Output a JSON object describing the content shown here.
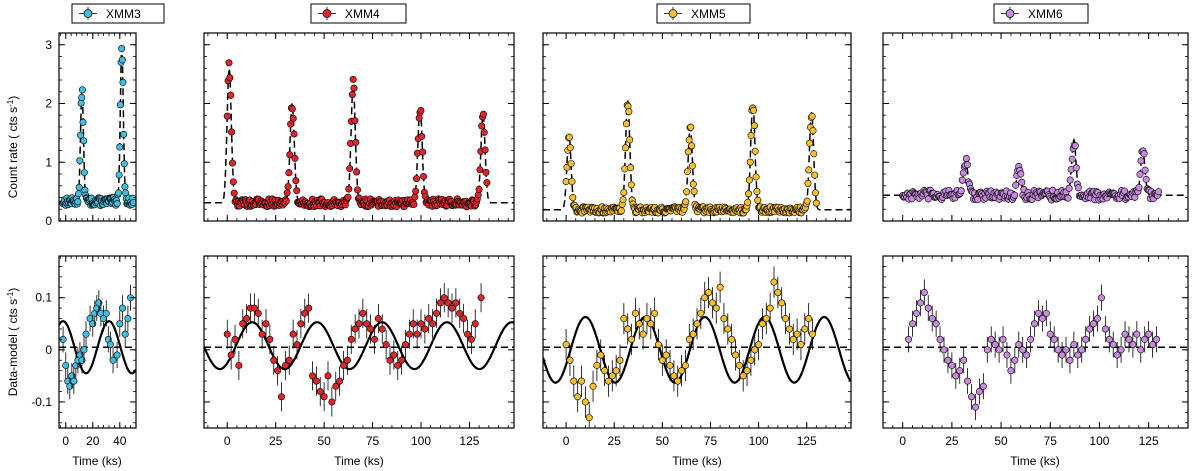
{
  "figure": {
    "ylabel_top_main": "Count rate ( cts s",
    "ylabel_top_sup": "-1",
    "ylabel_top_close": ")",
    "ylabel_bottom_main": "Data-model ( cts s",
    "ylabel_bottom_sup": "-1",
    "ylabel_bottom_close": ")",
    "xlabel": "Time (ks)"
  },
  "chart_data": [
    {
      "type": "scatter",
      "panel": "XMM3",
      "row": "light-curve",
      "legend": "XMM3",
      "marker_color": "#3fc0e0",
      "xlim": [
        -5,
        52
      ],
      "ylim": [
        0,
        3.2
      ],
      "xticks": [
        0,
        20,
        40
      ],
      "yticks": [
        0,
        1,
        2,
        3
      ],
      "yticklabels": [
        "0",
        "1",
        "2",
        "3"
      ],
      "baseline": 0.33,
      "flares": [
        {
          "t": 12,
          "peak": 2.2
        },
        {
          "t": 41.5,
          "peak": 2.95
        }
      ],
      "n_points": 110,
      "t_range": [
        -2,
        50
      ],
      "noise": 0.06
    },
    {
      "type": "scatter",
      "panel": "XMM4",
      "row": "light-curve",
      "legend": "XMM4",
      "marker_color": "#e0262b",
      "xlim": [
        -12,
        148
      ],
      "ylim": [
        0,
        3.2
      ],
      "xticks": [
        0,
        25,
        50,
        75,
        100,
        125
      ],
      "yticks": [
        0,
        1,
        2,
        3
      ],
      "baseline": 0.31,
      "flares": [
        {
          "t": 1,
          "peak": 2.6
        },
        {
          "t": 33.5,
          "peak": 2.0
        },
        {
          "t": 65,
          "peak": 2.3
        },
        {
          "t": 99.5,
          "peak": 1.95
        },
        {
          "t": 132,
          "peak": 1.8
        }
      ],
      "n_points": 300,
      "t_range": [
        0,
        134
      ],
      "noise": 0.06
    },
    {
      "type": "scatter",
      "panel": "XMM5",
      "row": "light-curve",
      "legend": "XMM5",
      "marker_color": "#f5c02a",
      "xlim": [
        -12,
        148
      ],
      "ylim": [
        0,
        3.2
      ],
      "xticks": [
        0,
        25,
        50,
        75,
        100,
        125
      ],
      "yticks": [
        0,
        1,
        2,
        3
      ],
      "baseline": 0.19,
      "flares": [
        {
          "t": 1.5,
          "peak": 1.45
        },
        {
          "t": 32,
          "peak": 2.05
        },
        {
          "t": 64.5,
          "peak": 1.6
        },
        {
          "t": 97,
          "peak": 2.0
        },
        {
          "t": 127.5,
          "peak": 1.85
        }
      ],
      "n_points": 300,
      "t_range": [
        0,
        130
      ],
      "noise": 0.05
    },
    {
      "type": "scatter",
      "panel": "XMM6",
      "row": "light-curve",
      "legend": "XMM6",
      "marker_color": "#c98ae0",
      "xlim": [
        -10,
        145
      ],
      "ylim": [
        0,
        3.2
      ],
      "xticks": [
        0,
        25,
        50,
        75,
        100,
        125
      ],
      "yticks": [
        0,
        1,
        2,
        3
      ],
      "baseline": 0.44,
      "flares": [
        {
          "t": 32,
          "peak": 1.05
        },
        {
          "t": 59,
          "peak": 0.9
        },
        {
          "t": 87,
          "peak": 1.38
        },
        {
          "t": 122,
          "peak": 1.2
        }
      ],
      "n_points": 250,
      "t_range": [
        0,
        130
      ],
      "noise": 0.07
    },
    {
      "type": "scatter",
      "panel": "XMM3",
      "row": "residuals",
      "marker_color": "#3fc0e0",
      "xlim": [
        -5,
        52
      ],
      "ylim": [
        -0.15,
        0.18
      ],
      "xticks": [
        0,
        20,
        40
      ],
      "xticklabels": [
        "0",
        "20",
        "40"
      ],
      "yticks": [
        -0.1,
        0,
        0.1
      ],
      "yticklabels": [
        "-0.1",
        "0",
        "0.1"
      ],
      "sine": {
        "amplitude": 0.05,
        "period": 34,
        "phase_t0": -10.5,
        "offset": 0.005,
        "t_start": -5,
        "t_end": 52
      },
      "points_t": [
        -2,
        0,
        1.5,
        3,
        4.5,
        6,
        7.5,
        9,
        10.5,
        12,
        13.5,
        15,
        18,
        20,
        21.5,
        23,
        24.5,
        26,
        28,
        30,
        31.5,
        33,
        35,
        38,
        40,
        42,
        44,
        46,
        48
      ],
      "points_y": [
        0.02,
        -0.03,
        -0.06,
        -0.07,
        -0.05,
        -0.06,
        -0.03,
        -0.02,
        -0.01,
        -0.02,
        0.0,
        0.03,
        0.06,
        0.05,
        0.07,
        0.08,
        0.09,
        0.07,
        0.06,
        0.07,
        0.02,
        0.01,
        -0.02,
        -0.01,
        0.05,
        0.08,
        0.03,
        0.06,
        0.1
      ],
      "error": 0.025
    },
    {
      "type": "scatter",
      "panel": "XMM4",
      "row": "residuals",
      "marker_color": "#e0262b",
      "xlim": [
        -12,
        148
      ],
      "ylim": [
        -0.15,
        0.18
      ],
      "xticks": [
        0,
        25,
        50,
        75,
        100,
        125
      ],
      "xticklabels": [
        "0",
        "25",
        "50",
        "75",
        "100",
        "125"
      ],
      "yticks": [
        -0.1,
        0,
        0.1
      ],
      "sine": {
        "amplitude": 0.045,
        "period": 33.5,
        "phase_t0": 4.5,
        "offset": 0.008,
        "t_start": -12,
        "t_end": 148
      },
      "points_t": [
        0,
        2,
        4,
        6,
        8,
        10,
        12,
        14,
        16,
        18,
        20,
        22,
        24,
        26,
        28,
        30,
        32,
        34,
        36,
        38,
        40,
        42,
        44,
        46,
        48,
        50,
        52,
        54,
        56,
        58,
        60,
        62,
        64,
        66,
        68,
        70,
        72,
        74,
        76,
        78,
        80,
        82,
        84,
        86,
        88,
        90,
        92,
        94,
        96,
        98,
        100,
        102,
        104,
        106,
        108,
        110,
        112,
        114,
        116,
        118,
        120,
        122,
        124,
        126,
        128,
        131
      ],
      "points_y": [
        0.03,
        -0.01,
        0.02,
        -0.03,
        0.05,
        0.06,
        0.08,
        0.08,
        0.07,
        0.03,
        0.05,
        0.02,
        -0.02,
        -0.04,
        -0.09,
        -0.03,
        -0.02,
        0.03,
        0.01,
        0.05,
        0.07,
        0.08,
        -0.05,
        -0.06,
        -0.08,
        -0.09,
        -0.05,
        -0.1,
        -0.07,
        -0.06,
        -0.03,
        -0.02,
        0.02,
        0.04,
        0.05,
        0.07,
        0.05,
        0.04,
        0.02,
        0.06,
        0.04,
        0.01,
        -0.02,
        -0.01,
        -0.03,
        -0.02,
        0.01,
        0.03,
        0.05,
        0.03,
        0.05,
        0.04,
        0.06,
        0.05,
        0.07,
        0.09,
        0.1,
        0.09,
        0.08,
        0.09,
        0.07,
        0.06,
        0.03,
        0.02,
        0.05,
        0.1
      ],
      "error": 0.028
    },
    {
      "type": "scatter",
      "panel": "XMM5",
      "row": "residuals",
      "marker_color": "#f5c02a",
      "xlim": [
        -12,
        148
      ],
      "ylim": [
        -0.15,
        0.18
      ],
      "xticks": [
        0,
        25,
        50,
        75,
        100,
        125
      ],
      "xticklabels": [
        "0",
        "25",
        "50",
        "75",
        "100",
        "125"
      ],
      "yticks": [
        -0.1,
        0,
        0.1
      ],
      "sine": {
        "amplitude": 0.063,
        "period": 31,
        "phase_t0": 2.3,
        "offset": 0.0,
        "t_start": -12,
        "t_end": 148
      },
      "points_t": [
        0,
        2,
        4,
        6,
        8,
        10,
        12,
        14,
        16,
        18,
        20,
        22,
        24,
        26,
        28,
        30,
        32,
        34,
        36,
        38,
        40,
        42,
        44,
        46,
        48,
        50,
        52,
        54,
        56,
        58,
        60,
        62,
        64,
        66,
        68,
        70,
        72,
        74,
        76,
        78,
        80,
        82,
        84,
        86,
        88,
        90,
        92,
        94,
        96,
        98,
        100,
        102,
        104,
        106,
        108,
        110,
        112,
        114,
        116,
        118,
        120,
        122,
        124,
        126,
        128
      ],
      "points_y": [
        0.01,
        -0.02,
        -0.06,
        -0.09,
        -0.06,
        -0.1,
        -0.13,
        -0.07,
        -0.03,
        -0.01,
        -0.04,
        -0.06,
        -0.05,
        -0.04,
        -0.02,
        0.06,
        0.04,
        0.02,
        0.07,
        0.05,
        0.03,
        0.06,
        0.05,
        0.07,
        0.01,
        -0.02,
        -0.01,
        -0.03,
        -0.05,
        -0.06,
        -0.04,
        -0.03,
        0.02,
        0.03,
        0.05,
        0.07,
        0.1,
        0.11,
        0.09,
        0.08,
        0.12,
        0.06,
        0.04,
        0.02,
        -0.01,
        -0.03,
        -0.05,
        -0.04,
        -0.02,
        0.0,
        0.01,
        0.05,
        0.06,
        0.08,
        0.13,
        0.11,
        0.09,
        0.06,
        0.04,
        0.02,
        0.03,
        0.01,
        0.04,
        0.06,
        0.03
      ],
      "error": 0.03
    },
    {
      "type": "scatter",
      "panel": "XMM6",
      "row": "residuals",
      "marker_color": "#c98ae0",
      "xlim": [
        -10,
        145
      ],
      "ylim": [
        -0.15,
        0.18
      ],
      "xticks": [
        0,
        25,
        50,
        75,
        100,
        125
      ],
      "xticklabels": [
        "0",
        "25",
        "50",
        "75",
        "100",
        "125"
      ],
      "yticks": [
        -0.1,
        0,
        0.1
      ],
      "baseline_residual": 0.005,
      "points_t": [
        3,
        5,
        7,
        9,
        11,
        13,
        15,
        17,
        19,
        21,
        23,
        25,
        27,
        29,
        31,
        33,
        35,
        37,
        39,
        41,
        43,
        45,
        47,
        49,
        51,
        53,
        55,
        57,
        59,
        61,
        63,
        65,
        67,
        69,
        71,
        73,
        75,
        77,
        79,
        81,
        83,
        85,
        87,
        89,
        91,
        93,
        95,
        97,
        99,
        101,
        103,
        105,
        107,
        109,
        111,
        113,
        115,
        117,
        119,
        121,
        123,
        125,
        127,
        129
      ],
      "points_y": [
        0.02,
        0.05,
        0.07,
        0.09,
        0.11,
        0.08,
        0.06,
        0.05,
        0.02,
        0.0,
        -0.02,
        -0.03,
        -0.05,
        -0.04,
        -0.02,
        -0.06,
        -0.09,
        -0.11,
        -0.08,
        -0.07,
        0.0,
        0.02,
        0.01,
        0.0,
        0.02,
        -0.01,
        -0.04,
        -0.02,
        0.01,
        0.0,
        -0.01,
        0.02,
        0.05,
        0.07,
        0.06,
        0.07,
        0.03,
        0.02,
        0.0,
        -0.01,
        0.0,
        -0.02,
        0.01,
        -0.01,
        0.0,
        0.02,
        0.04,
        0.05,
        0.06,
        0.1,
        0.04,
        0.02,
        0.01,
        -0.01,
        0.0,
        0.03,
        0.02,
        0.01,
        0.03,
        0.0,
        0.02,
        0.03,
        0.01,
        0.02
      ],
      "error": 0.025
    }
  ]
}
